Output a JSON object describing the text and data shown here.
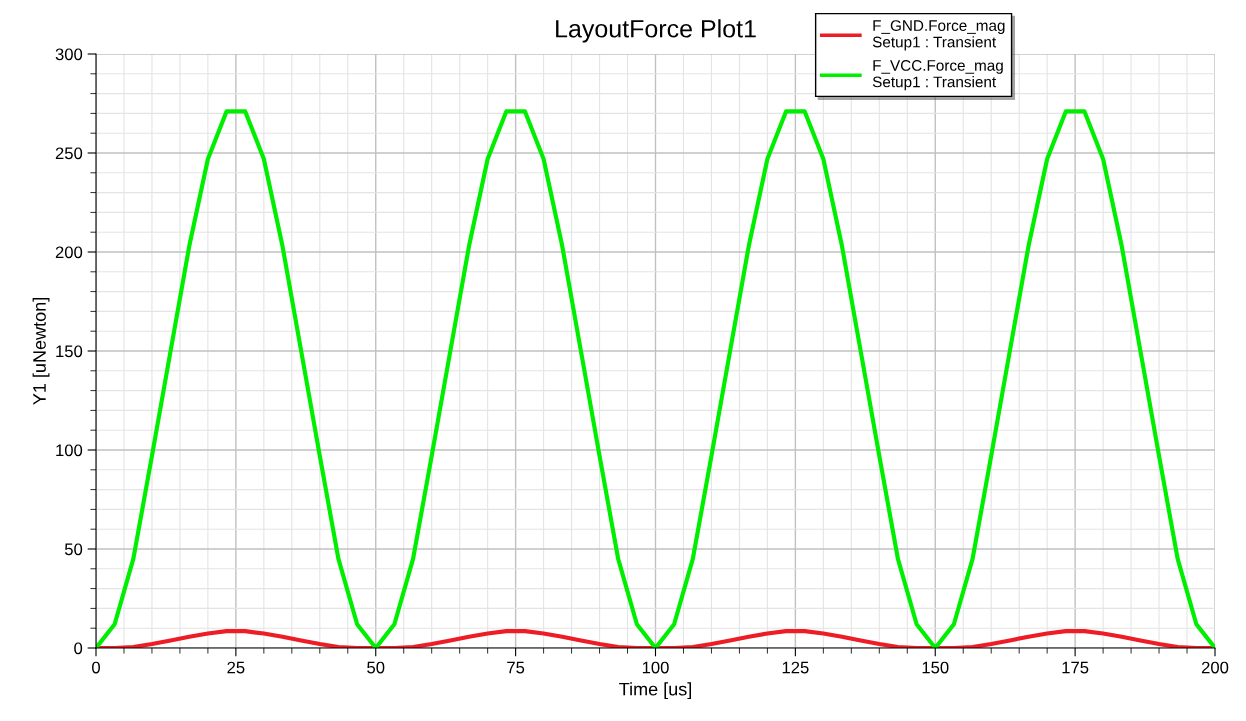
{
  "chart_data": {
    "type": "line",
    "title": "LayoutForce Plot1",
    "xlabel": "Time [us]",
    "ylabel": "Y1 [uNewton]",
    "x": [
      0,
      3.33,
      6.67,
      10,
      13.33,
      16.67,
      20,
      23.33,
      26.67,
      30,
      33.33,
      36.67,
      40,
      43.33,
      46.67,
      50,
      53.33,
      56.67,
      60,
      63.33,
      66.67,
      70,
      73.33,
      76.67,
      80,
      83.33,
      86.67,
      90,
      93.33,
      96.67,
      100,
      103.33,
      106.67,
      110,
      113.33,
      116.67,
      120,
      123.33,
      126.67,
      130,
      133.33,
      136.67,
      140,
      143.33,
      146.67,
      150,
      153.33,
      156.67,
      160,
      163.33,
      166.67,
      170,
      173.33,
      176.67,
      180,
      183.33,
      186.67,
      190,
      193.33,
      196.67,
      200
    ],
    "series": [
      {
        "name": "F_GND.Force_mag\nSetup1 : Transient",
        "color": "#ee1c25",
        "values": [
          0,
          0,
          0.5,
          2,
          3.8,
          5.7,
          7.3,
          8.5,
          8.5,
          7.3,
          5.7,
          3.8,
          2,
          0.5,
          0,
          0,
          0,
          0.5,
          2,
          3.8,
          5.7,
          7.3,
          8.5,
          8.5,
          7.3,
          5.7,
          3.8,
          2,
          0.5,
          0,
          0,
          0,
          0.5,
          2,
          3.8,
          5.7,
          7.3,
          8.5,
          8.5,
          7.3,
          5.7,
          3.8,
          2,
          0.5,
          0,
          0,
          0,
          0.5,
          2,
          3.8,
          5.7,
          7.3,
          8.5,
          8.5,
          7.3,
          5.7,
          3.8,
          2,
          0.5,
          0,
          0
        ]
      },
      {
        "name": "F_VCC.Force_mag\nSetup1 : Transient",
        "color": "#00ee00",
        "values": [
          0,
          12,
          45,
          97,
          150,
          203,
          247,
          271,
          271,
          247,
          203,
          150,
          97,
          45,
          12,
          0,
          12,
          45,
          97,
          150,
          203,
          247,
          271,
          271,
          247,
          203,
          150,
          97,
          45,
          12,
          0,
          12,
          45,
          97,
          150,
          203,
          247,
          271,
          271,
          247,
          203,
          150,
          97,
          45,
          12,
          0,
          12,
          45,
          97,
          150,
          203,
          247,
          271,
          271,
          247,
          203,
          150,
          97,
          45,
          12,
          0
        ]
      }
    ],
    "xlim": [
      0,
      200
    ],
    "xticks": [
      0,
      25,
      50,
      75,
      100,
      125,
      150,
      175,
      200
    ],
    "ylim": [
      0,
      300
    ],
    "yticks": [
      0,
      50,
      100,
      150,
      200,
      250,
      300
    ],
    "grid": true,
    "legend": "top right",
    "marker": "none",
    "line_style": "solid"
  }
}
